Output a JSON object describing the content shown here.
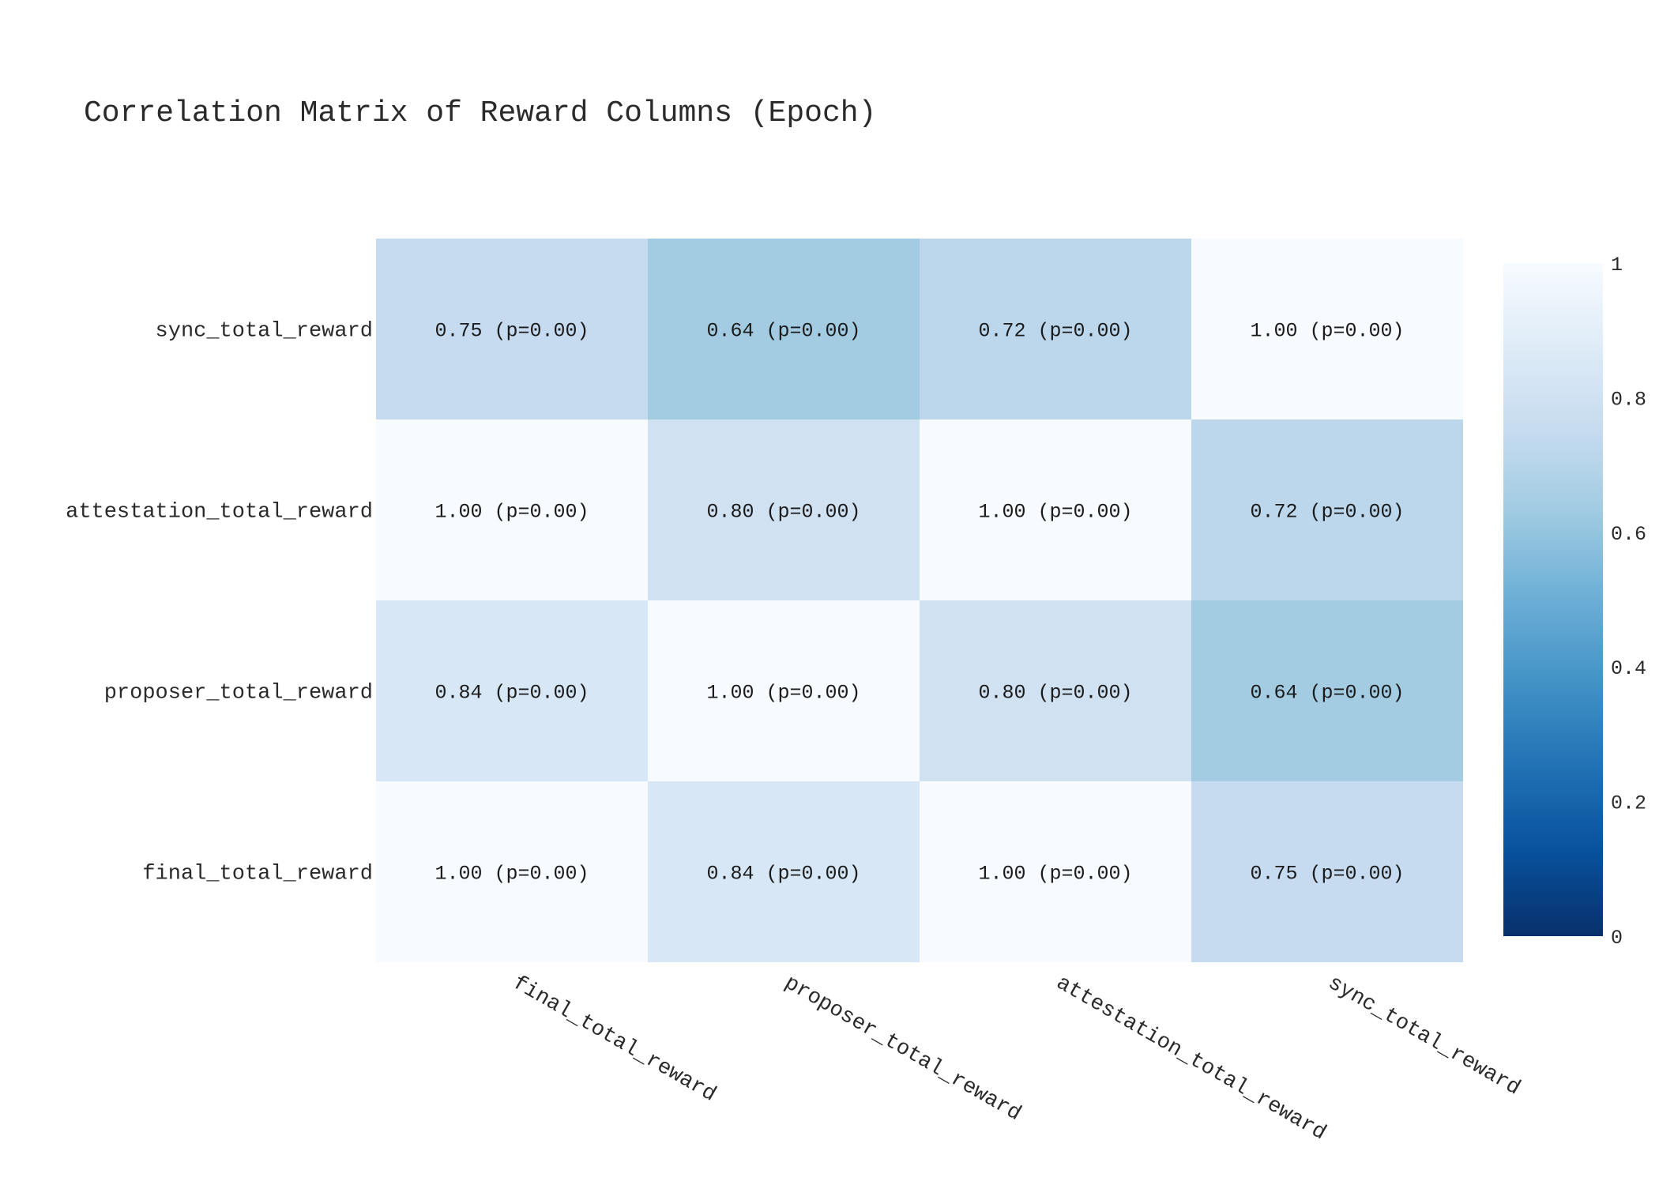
{
  "chart_data": {
    "type": "heatmap",
    "title": "Correlation Matrix of Reward Columns (Epoch)",
    "x_categories": [
      "final_total_reward",
      "proposer_total_reward",
      "attestation_total_reward",
      "sync_total_reward"
    ],
    "y_categories": [
      "final_total_reward",
      "proposer_total_reward",
      "attestation_total_reward",
      "sync_total_reward"
    ],
    "values": [
      [
        1.0,
        0.84,
        1.0,
        0.75
      ],
      [
        0.84,
        1.0,
        0.8,
        0.64
      ],
      [
        1.0,
        0.8,
        1.0,
        0.72
      ],
      [
        0.75,
        0.64,
        0.72,
        1.0
      ]
    ],
    "annotations": [
      [
        "1.00 (p=0.00)",
        "0.84 (p=0.00)",
        "1.00 (p=0.00)",
        "0.75 (p=0.00)"
      ],
      [
        "0.84 (p=0.00)",
        "1.00 (p=0.00)",
        "0.80 (p=0.00)",
        "0.64 (p=0.00)"
      ],
      [
        "1.00 (p=0.00)",
        "0.80 (p=0.00)",
        "1.00 (p=0.00)",
        "0.72 (p=0.00)"
      ],
      [
        "0.75 (p=0.00)",
        "0.64 (p=0.00)",
        "0.72 (p=0.00)",
        "1.00 (p=0.00)"
      ]
    ],
    "colorscale": "Blues",
    "zrange": [
      0,
      1
    ],
    "colorbar_ticks": [
      "0",
      "0.2",
      "0.4",
      "0.6",
      "0.8",
      "1"
    ],
    "colorbar_tick_values": [
      0,
      0.2,
      0.4,
      0.6,
      0.8,
      1
    ],
    "colorscale_stops": [
      [
        0.0,
        "#08306b"
      ],
      [
        0.125,
        "#08519c"
      ],
      [
        0.25,
        "#2171b5"
      ],
      [
        0.375,
        "#4292c6"
      ],
      [
        0.5,
        "#6baed6"
      ],
      [
        0.625,
        "#9ecae1"
      ],
      [
        0.75,
        "#c6dbef"
      ],
      [
        0.875,
        "#deebf7"
      ],
      [
        1.0,
        "#f7fbff"
      ]
    ],
    "grid": false,
    "legend": "colorbar-right"
  }
}
